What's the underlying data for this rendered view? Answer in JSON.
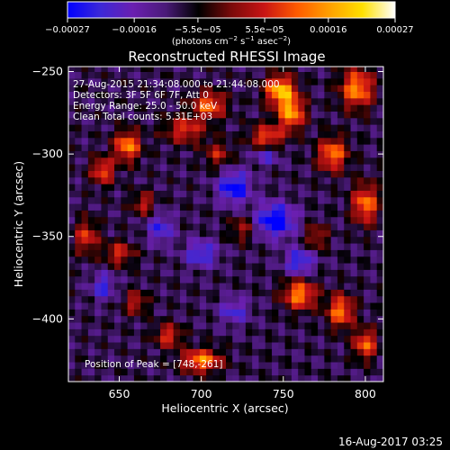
{
  "chart_data": {
    "type": "heatmap",
    "title": "Reconstructed RHESSI Image",
    "xlabel": "Heliocentric X (arcsec)",
    "ylabel": "Heliocentric Y (arcsec)",
    "xlim": [
      619,
      811
    ],
    "ylim": [
      -438,
      -247
    ],
    "x_ticks": [
      650,
      700,
      750,
      800
    ],
    "x_tick_labels": [
      "650",
      "700",
      "750",
      "800"
    ],
    "y_ticks": [
      -400,
      -350,
      -300,
      -250
    ],
    "y_tick_labels": [
      "−400",
      "−350",
      "−300",
      "−250"
    ],
    "colorbar": {
      "min": -0.00027,
      "max": 0.00027,
      "ticks": [
        -0.00027,
        -0.00016,
        -5.5e-05,
        5.5e-05,
        0.00016,
        0.00027
      ],
      "tick_labels": [
        "−0.00027",
        "−0.00016",
        "−5.5e−05",
        "5.5e−05",
        "0.00016",
        "0.00027"
      ],
      "units_label_main": "(photons cm",
      "units_sup1": "−2",
      "units_mid": " s",
      "units_sup2": "−1",
      "units_mid2": " asec",
      "units_sup3": "−2",
      "units_end": ")",
      "colormap": [
        "#0000ff",
        "#3c28d8",
        "#6a1fb0",
        "#4a1a78",
        "#000000",
        "#7a0a0a",
        "#c81414",
        "#ff5a00",
        "#ffa000",
        "#ffe000",
        "#ffffff"
      ]
    },
    "annotations": [
      "27-Aug-2015 21:34:08.000 to 21:44:08.000",
      "Detectors: 3F 5F 6F 7F, Att 0",
      "Energy Range: 25.0 - 50.0 keV",
      "Clean    Total counts: 5.31E+03"
    ],
    "peak_label": "Position of Peak = [748,-261]",
    "bright_regions": [
      {
        "x": 748,
        "y": -261,
        "v": 1.0,
        "sx": 9,
        "sy": 9
      },
      {
        "x": 755,
        "y": -275,
        "v": 0.9,
        "sx": 8,
        "sy": 10
      },
      {
        "x": 740,
        "y": -290,
        "v": 0.7,
        "sx": 10,
        "sy": 8
      },
      {
        "x": 795,
        "y": -260,
        "v": 0.85,
        "sx": 10,
        "sy": 12
      },
      {
        "x": 780,
        "y": -300,
        "v": 0.8,
        "sx": 9,
        "sy": 10
      },
      {
        "x": 800,
        "y": -330,
        "v": 0.8,
        "sx": 8,
        "sy": 12
      },
      {
        "x": 705,
        "y": -270,
        "v": 0.75,
        "sx": 10,
        "sy": 8
      },
      {
        "x": 690,
        "y": -285,
        "v": 0.6,
        "sx": 12,
        "sy": 8
      },
      {
        "x": 655,
        "y": -295,
        "v": 0.85,
        "sx": 8,
        "sy": 9
      },
      {
        "x": 640,
        "y": -310,
        "v": 0.7,
        "sx": 7,
        "sy": 8
      },
      {
        "x": 630,
        "y": -350,
        "v": 0.6,
        "sx": 7,
        "sy": 10
      },
      {
        "x": 650,
        "y": -360,
        "v": 0.55,
        "sx": 9,
        "sy": 7
      },
      {
        "x": 665,
        "y": -330,
        "v": 0.5,
        "sx": 7,
        "sy": 7
      },
      {
        "x": 710,
        "y": -300,
        "v": 0.45,
        "sx": 8,
        "sy": 8
      },
      {
        "x": 760,
        "y": -385,
        "v": 0.85,
        "sx": 10,
        "sy": 9
      },
      {
        "x": 785,
        "y": -395,
        "v": 0.8,
        "sx": 8,
        "sy": 10
      },
      {
        "x": 800,
        "y": -415,
        "v": 0.75,
        "sx": 7,
        "sy": 9
      },
      {
        "x": 700,
        "y": -425,
        "v": 0.85,
        "sx": 12,
        "sy": 7
      },
      {
        "x": 680,
        "y": -410,
        "v": 0.6,
        "sx": 8,
        "sy": 7
      },
      {
        "x": 660,
        "y": -390,
        "v": 0.5,
        "sx": 7,
        "sy": 7
      },
      {
        "x": 725,
        "y": -345,
        "v": 0.4,
        "sx": 8,
        "sy": 8
      },
      {
        "x": 770,
        "y": -350,
        "v": 0.45,
        "sx": 7,
        "sy": 8
      }
    ],
    "dark_regions": [
      {
        "x": 720,
        "y": -320,
        "v": -0.7,
        "sx": 10,
        "sy": 10
      },
      {
        "x": 745,
        "y": -340,
        "v": -0.8,
        "sx": 12,
        "sy": 10
      },
      {
        "x": 700,
        "y": -360,
        "v": -0.55,
        "sx": 10,
        "sy": 8
      },
      {
        "x": 740,
        "y": -300,
        "v": -0.5,
        "sx": 8,
        "sy": 6
      },
      {
        "x": 675,
        "y": -345,
        "v": -0.5,
        "sx": 8,
        "sy": 9
      },
      {
        "x": 760,
        "y": -365,
        "v": -0.6,
        "sx": 9,
        "sy": 8
      },
      {
        "x": 640,
        "y": -380,
        "v": -0.5,
        "sx": 7,
        "sy": 8
      },
      {
        "x": 720,
        "y": -395,
        "v": -0.45,
        "sx": 9,
        "sy": 8
      }
    ]
  },
  "footer": {
    "timestamp": "16-Aug-2017 03:25"
  }
}
